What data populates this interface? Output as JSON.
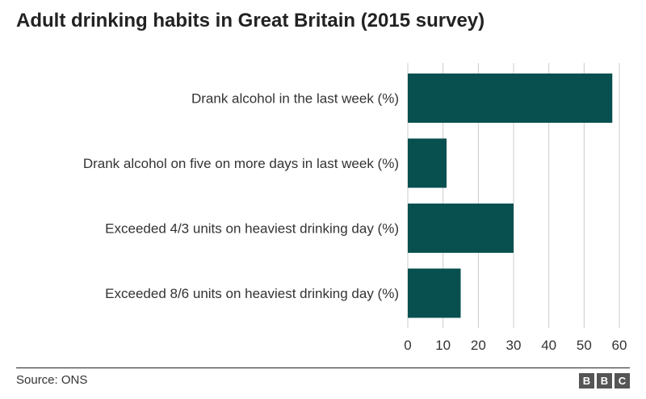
{
  "chart_data": {
    "type": "bar",
    "orientation": "horizontal",
    "title": "Adult drinking habits in Great Britain  (2015 survey)",
    "categories": [
      "Drank alcohol in the last week (%)",
      "Drank alcohol on five on more days in last week (%)",
      "Exceeded 4/3 units on heaviest drinking day (%)",
      "Exceeded 8/6 units on heaviest drinking day (%)"
    ],
    "values": [
      58,
      11,
      30,
      15
    ],
    "xlim": [
      0,
      60
    ],
    "xticks": [
      "0",
      "10",
      "20",
      "30",
      "40",
      "50",
      "60"
    ],
    "grid": true,
    "bar_color": "#07504f",
    "grid_color": "#cccccc"
  },
  "footer": {
    "source": "Source: ONS",
    "logo_letters": [
      "B",
      "B",
      "C"
    ]
  }
}
